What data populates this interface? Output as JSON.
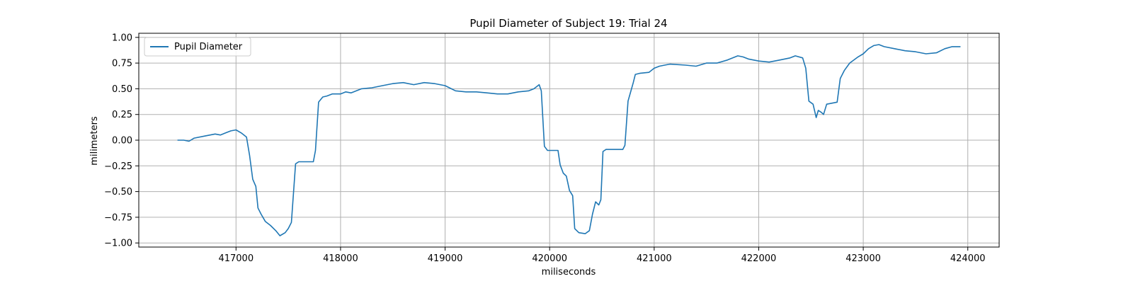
{
  "chart_data": {
    "type": "line",
    "title": "Pupil Diameter of Subject 19: Trial 24",
    "xlabel": "miliseconds",
    "ylabel": "milimeters",
    "xlim": [
      416070,
      424300
    ],
    "ylim": [
      -1.04,
      1.04
    ],
    "x_ticks": [
      417000,
      418000,
      419000,
      420000,
      421000,
      422000,
      423000,
      424000
    ],
    "y_ticks": [
      -1.0,
      -0.75,
      -0.5,
      -0.25,
      0.0,
      0.25,
      0.5,
      0.75,
      1.0
    ],
    "x_tick_labels": [
      "417000",
      "418000",
      "419000",
      "420000",
      "421000",
      "422000",
      "423000",
      "424000"
    ],
    "y_tick_labels": [
      "−1.00",
      "−0.75",
      "−0.50",
      "−0.25",
      "0.00",
      "0.25",
      "0.50",
      "0.75",
      "1.00"
    ],
    "grid": true,
    "legend_position": "top-left",
    "colors": {
      "series": "#1f77b4",
      "grid": "#b0b0b0",
      "axes": "#000000"
    },
    "series": [
      {
        "name": "Pupil Diameter",
        "points": [
          [
            416440,
            0.0
          ],
          [
            416500,
            0.0
          ],
          [
            416550,
            -0.01
          ],
          [
            416600,
            0.02
          ],
          [
            416700,
            0.04
          ],
          [
            416800,
            0.06
          ],
          [
            416850,
            0.05
          ],
          [
            416900,
            0.07
          ],
          [
            416950,
            0.09
          ],
          [
            417000,
            0.1
          ],
          [
            417050,
            0.07
          ],
          [
            417100,
            0.03
          ],
          [
            417130,
            -0.15
          ],
          [
            417160,
            -0.38
          ],
          [
            417190,
            -0.45
          ],
          [
            417210,
            -0.66
          ],
          [
            417240,
            -0.72
          ],
          [
            417280,
            -0.79
          ],
          [
            417330,
            -0.83
          ],
          [
            417380,
            -0.88
          ],
          [
            417420,
            -0.93
          ],
          [
            417470,
            -0.9
          ],
          [
            417500,
            -0.86
          ],
          [
            417530,
            -0.8
          ],
          [
            417570,
            -0.23
          ],
          [
            417600,
            -0.21
          ],
          [
            417740,
            -0.21
          ],
          [
            417760,
            -0.1
          ],
          [
            417790,
            0.37
          ],
          [
            417830,
            0.42
          ],
          [
            417870,
            0.43
          ],
          [
            417920,
            0.45
          ],
          [
            418000,
            0.45
          ],
          [
            418050,
            0.47
          ],
          [
            418100,
            0.46
          ],
          [
            418200,
            0.5
          ],
          [
            418300,
            0.51
          ],
          [
            418400,
            0.53
          ],
          [
            418500,
            0.55
          ],
          [
            418600,
            0.56
          ],
          [
            418700,
            0.54
          ],
          [
            418800,
            0.56
          ],
          [
            418900,
            0.55
          ],
          [
            419000,
            0.53
          ],
          [
            419100,
            0.48
          ],
          [
            419200,
            0.47
          ],
          [
            419300,
            0.47
          ],
          [
            419400,
            0.46
          ],
          [
            419500,
            0.45
          ],
          [
            419600,
            0.45
          ],
          [
            419700,
            0.47
          ],
          [
            419800,
            0.48
          ],
          [
            419850,
            0.5
          ],
          [
            419900,
            0.54
          ],
          [
            419920,
            0.48
          ],
          [
            419950,
            -0.06
          ],
          [
            419980,
            -0.1
          ],
          [
            420080,
            -0.1
          ],
          [
            420100,
            -0.24
          ],
          [
            420130,
            -0.32
          ],
          [
            420160,
            -0.35
          ],
          [
            420190,
            -0.49
          ],
          [
            420220,
            -0.54
          ],
          [
            420240,
            -0.86
          ],
          [
            420280,
            -0.9
          ],
          [
            420340,
            -0.91
          ],
          [
            420380,
            -0.88
          ],
          [
            420410,
            -0.72
          ],
          [
            420440,
            -0.6
          ],
          [
            420470,
            -0.63
          ],
          [
            420490,
            -0.58
          ],
          [
            420510,
            -0.11
          ],
          [
            420540,
            -0.09
          ],
          [
            420700,
            -0.09
          ],
          [
            420720,
            -0.05
          ],
          [
            420750,
            0.38
          ],
          [
            420800,
            0.56
          ],
          [
            420820,
            0.64
          ],
          [
            420860,
            0.65
          ],
          [
            420950,
            0.66
          ],
          [
            421000,
            0.7
          ],
          [
            421050,
            0.72
          ],
          [
            421100,
            0.73
          ],
          [
            421150,
            0.74
          ],
          [
            421300,
            0.73
          ],
          [
            421400,
            0.72
          ],
          [
            421500,
            0.75
          ],
          [
            421600,
            0.75
          ],
          [
            421700,
            0.78
          ],
          [
            421800,
            0.82
          ],
          [
            421850,
            0.81
          ],
          [
            421900,
            0.79
          ],
          [
            422000,
            0.77
          ],
          [
            422100,
            0.76
          ],
          [
            422200,
            0.78
          ],
          [
            422300,
            0.8
          ],
          [
            422350,
            0.82
          ],
          [
            422420,
            0.8
          ],
          [
            422450,
            0.7
          ],
          [
            422480,
            0.38
          ],
          [
            422520,
            0.35
          ],
          [
            422550,
            0.22
          ],
          [
            422570,
            0.29
          ],
          [
            422600,
            0.27
          ],
          [
            422620,
            0.25
          ],
          [
            422650,
            0.35
          ],
          [
            422750,
            0.37
          ],
          [
            422780,
            0.6
          ],
          [
            422820,
            0.68
          ],
          [
            422870,
            0.75
          ],
          [
            422950,
            0.81
          ],
          [
            423000,
            0.84
          ],
          [
            423050,
            0.89
          ],
          [
            423100,
            0.92
          ],
          [
            423150,
            0.93
          ],
          [
            423200,
            0.91
          ],
          [
            423300,
            0.89
          ],
          [
            423400,
            0.87
          ],
          [
            423500,
            0.86
          ],
          [
            423600,
            0.84
          ],
          [
            423700,
            0.85
          ],
          [
            423780,
            0.89
          ],
          [
            423850,
            0.91
          ],
          [
            423900,
            0.91
          ],
          [
            423930,
            0.91
          ]
        ]
      }
    ]
  }
}
